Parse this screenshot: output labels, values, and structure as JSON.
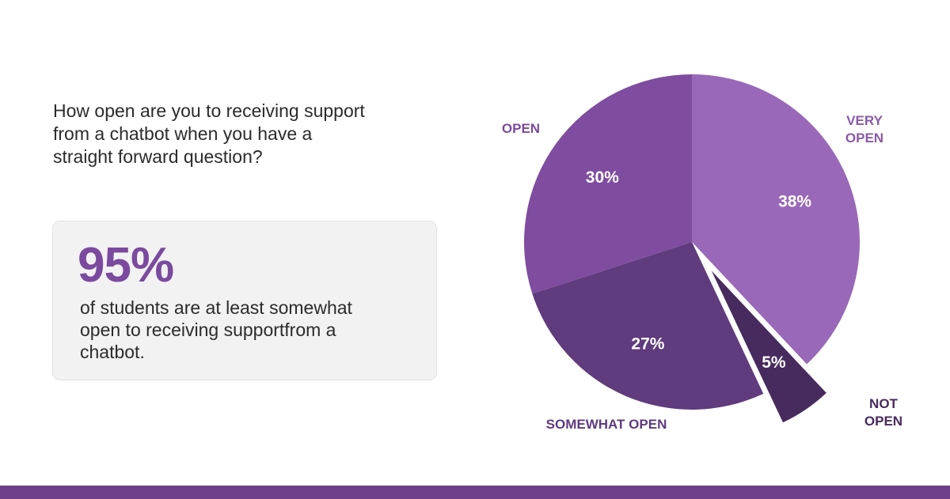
{
  "question": {
    "line1": "How open are you to receiving support",
    "line2": "from a chatbot when you have a",
    "line3": "straight forward question?"
  },
  "stat_card": {
    "number": "95%",
    "line1": "of students are at least somewhat",
    "line2": "open to receiving supportfrom a",
    "line3": "chatbot."
  },
  "chart_data": {
    "type": "pie",
    "slices": [
      {
        "label": "VERY OPEN",
        "value": 38,
        "value_label": "38%",
        "color": "#9a68b8"
      },
      {
        "label": "NOT OPEN",
        "value": 5,
        "value_label": "5%",
        "color": "#472a5e",
        "exploded": true
      },
      {
        "label": "SOMEWHAT OPEN",
        "value": 27,
        "value_label": "27%",
        "color": "#603b7e"
      },
      {
        "label": "OPEN",
        "value": 30,
        "value_label": "30%",
        "color": "#7f4c9f"
      }
    ],
    "start": "12 o'clock",
    "direction": "clockwise",
    "legend": "none"
  },
  "colors": {
    "accent": "#7b4a9e",
    "footer": "#6f3f8c",
    "card_bg": "#f2f2f2"
  }
}
